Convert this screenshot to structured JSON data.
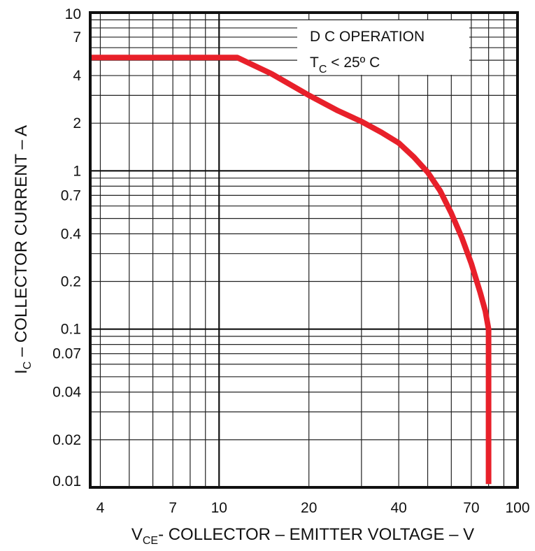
{
  "chart_data": {
    "type": "line",
    "x_scale": "log",
    "y_scale": "log",
    "xlim": [
      3.7,
      100
    ],
    "ylim": [
      0.01,
      10
    ],
    "grid": true,
    "x_ticks": [
      {
        "value": 4,
        "label": "4"
      },
      {
        "value": 7,
        "label": "7"
      },
      {
        "value": 10,
        "label": "10"
      },
      {
        "value": 20,
        "label": "20"
      },
      {
        "value": 40,
        "label": "40"
      },
      {
        "value": 70,
        "label": "70"
      },
      {
        "value": 100,
        "label": "100"
      }
    ],
    "y_ticks": [
      {
        "value": 10,
        "label": "10"
      },
      {
        "value": 7,
        "label": "7"
      },
      {
        "value": 4,
        "label": "4"
      },
      {
        "value": 2,
        "label": "2"
      },
      {
        "value": 1,
        "label": "1"
      },
      {
        "value": 0.7,
        "label": "0.7"
      },
      {
        "value": 0.4,
        "label": "0.4"
      },
      {
        "value": 0.2,
        "label": "0.2"
      },
      {
        "value": 0.1,
        "label": "0.1"
      },
      {
        "value": 0.07,
        "label": "0.07"
      },
      {
        "value": 0.04,
        "label": "0.04"
      },
      {
        "value": 0.02,
        "label": "0.02"
      },
      {
        "value": 0.01,
        "label": "0.01"
      }
    ],
    "xlabel": {
      "main_1": "V",
      "sub": "CE",
      "main_2": "- COLLECTOR – EMITTER VOLTAGE – V"
    },
    "ylabel": {
      "main_1": "I",
      "sub": "C",
      "main_2": " – COLLECTOR CURRENT – A"
    },
    "annotation": {
      "line1": "D C OPERATION",
      "line2_main": "T",
      "line2_sub": "C",
      "line2_rest": " < 25º C"
    },
    "series": [
      {
        "color": "#e8202a",
        "x": [
          3.7,
          11.5,
          15,
          20,
          25,
          30,
          35,
          40,
          45,
          50,
          55,
          60,
          65,
          70,
          75,
          78,
          80,
          80
        ],
        "y": [
          5.2,
          5.2,
          4.1,
          3.0,
          2.4,
          2.05,
          1.75,
          1.5,
          1.22,
          0.98,
          0.75,
          0.54,
          0.38,
          0.26,
          0.17,
          0.13,
          0.1,
          0.0105
        ]
      }
    ]
  }
}
